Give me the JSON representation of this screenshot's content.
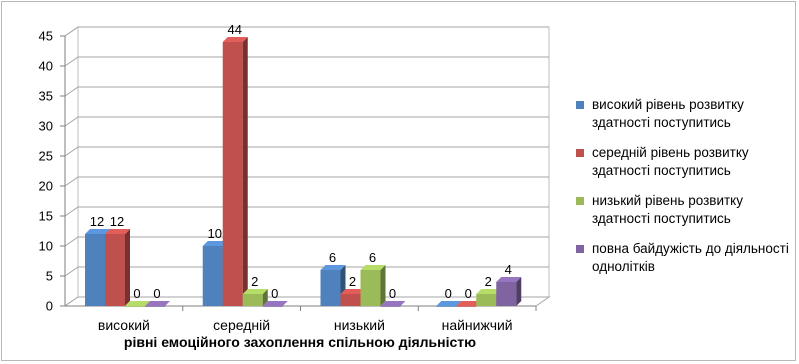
{
  "chart_data": {
    "type": "bar",
    "style": "3d-clustered-column",
    "categories": [
      "високий",
      "середній",
      "низький",
      "найнижчий"
    ],
    "series": [
      {
        "name": "високий рівень розвитку здатності поступитись",
        "values": [
          12,
          10,
          6,
          0
        ],
        "color": "#4F81BD"
      },
      {
        "name": "середній рівень розвитку здатності поступитись",
        "values": [
          12,
          44,
          2,
          0
        ],
        "color": "#C0504D"
      },
      {
        "name": "низький рівень розвитку здатності поступитись",
        "values": [
          0,
          2,
          6,
          2
        ],
        "color": "#9BBB59"
      },
      {
        "name": "повна байдужість до діяльності однолітків",
        "values": [
          0,
          0,
          0,
          4
        ],
        "color": "#8064A2"
      }
    ],
    "title": "",
    "xlabel": "рівні емоційного захоплення спільною діяльністю",
    "ylabel": "",
    "ylim": [
      0,
      45
    ],
    "yticks": [
      0,
      5,
      10,
      15,
      20,
      25,
      30,
      35,
      40,
      45
    ],
    "grid": true,
    "legend": "right"
  }
}
